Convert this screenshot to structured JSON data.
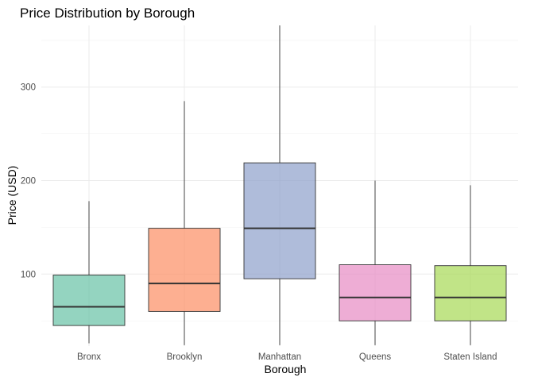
{
  "chart_data": {
    "type": "boxplot",
    "title": "Price Distribution by Borough",
    "xlabel": "Borough",
    "ylabel": "Price (USD)",
    "categories": [
      "Bronx",
      "Brooklyn",
      "Manhattan",
      "Queens",
      "Staten Island"
    ],
    "yticks": [
      100,
      200,
      300
    ],
    "ylim": [
      23,
      366
    ],
    "grid": true,
    "legend": "none",
    "boxes": [
      {
        "category": "Bronx",
        "low": 26,
        "q1": 45,
        "median": 65,
        "q3": 99,
        "high": 178,
        "color": "#66c2a5"
      },
      {
        "category": "Brooklyn",
        "low": 24,
        "q1": 60,
        "median": 90,
        "q3": 149,
        "high": 285,
        "color": "#fc8d62"
      },
      {
        "category": "Manhattan",
        "low": 24,
        "q1": 95,
        "median": 149,
        "q3": 219,
        "high": 366,
        "color": "#8da0cb"
      },
      {
        "category": "Queens",
        "low": 24,
        "q1": 50,
        "median": 75,
        "q3": 110,
        "high": 200,
        "color": "#e78ac3"
      },
      {
        "category": "Staten Island",
        "low": 24,
        "q1": 50,
        "median": 75,
        "q3": 109,
        "high": 195,
        "color": "#a6d854"
      }
    ]
  }
}
